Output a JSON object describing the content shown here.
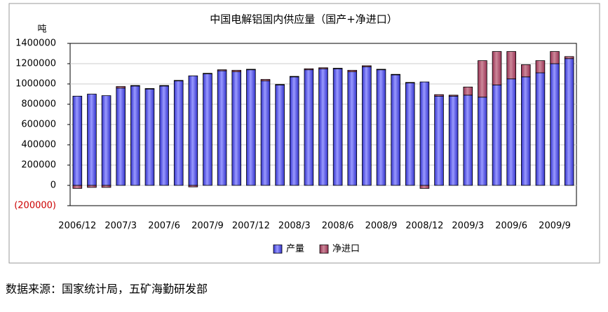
{
  "chart_data": {
    "type": "stacked_bar",
    "title": "中国电解铝国内供应量（国产+净进口）",
    "y_axis_label": "吨",
    "source": "数据来源：国家统计局，五矿海勤研发部",
    "categories": [
      "2006/12",
      null,
      null,
      "2007/3",
      null,
      null,
      "2007/6",
      null,
      null,
      "2007/9",
      null,
      null,
      "2007/12",
      null,
      null,
      "2008/3",
      null,
      null,
      "2008/6",
      null,
      null,
      "2008/9",
      null,
      null,
      "2008/12",
      null,
      null,
      "2009/3",
      null,
      null,
      "2009/6",
      null,
      null,
      "2009/9",
      null
    ],
    "series": [
      {
        "name": "产量",
        "color": "#3333cc",
        "values": [
          880000,
          900000,
          885000,
          960000,
          980000,
          950000,
          980000,
          1030000,
          1080000,
          1100000,
          1130000,
          1120000,
          1140000,
          1030000,
          990000,
          1070000,
          1140000,
          1150000,
          1150000,
          1120000,
          1170000,
          1140000,
          1090000,
          1010000,
          1020000,
          880000,
          880000,
          890000,
          870000,
          990000,
          1050000,
          1070000,
          1110000,
          1200000,
          1250000
        ]
      },
      {
        "name": "净进口",
        "color": "#993355",
        "values": [
          -30000,
          -20000,
          -20000,
          15000,
          5000,
          5000,
          5000,
          5000,
          -15000,
          5000,
          10000,
          15000,
          5000,
          15000,
          5000,
          5000,
          10000,
          10000,
          5000,
          15000,
          10000,
          5000,
          5000,
          5000,
          -30000,
          15000,
          10000,
          80000,
          360000,
          330000,
          270000,
          120000,
          120000,
          120000,
          20000
        ]
      }
    ],
    "ylim": [
      -200000,
      1400000
    ],
    "yticks": [
      {
        "value": -200000,
        "label": "(200000)",
        "color": "#cc0000"
      },
      0,
      200000,
      400000,
      600000,
      800000,
      1000000,
      1200000,
      1400000
    ],
    "grid": true,
    "legend": "bottom"
  }
}
